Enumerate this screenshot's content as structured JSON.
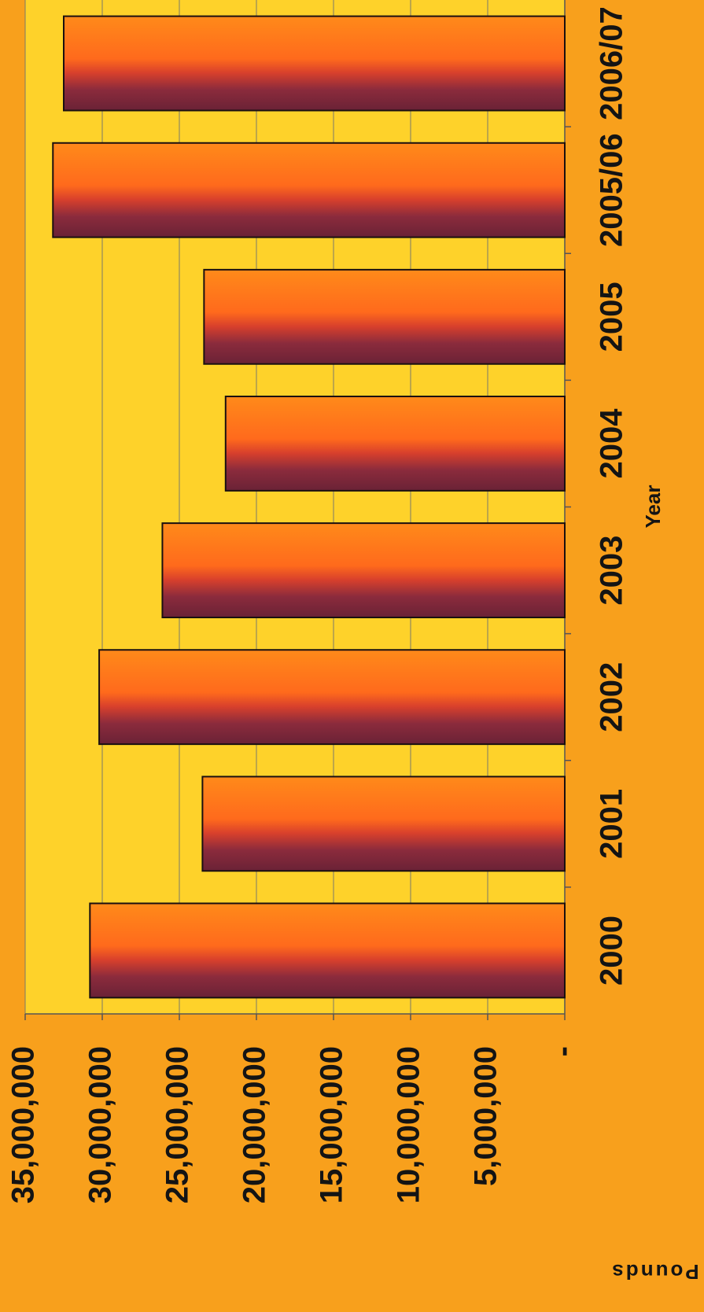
{
  "chart_data": {
    "type": "bar",
    "x_label": "Year",
    "y_label": "Pounds",
    "categories": [
      "2000",
      "2001",
      "2002",
      "2003",
      "2004",
      "2005",
      "2005/06",
      "2006/07"
    ],
    "values": [
      30800000,
      23500000,
      30200000,
      26100000,
      22000000,
      23400000,
      33200000,
      32500000
    ],
    "color": "#ff7a1a",
    "ylim": [
      0,
      35000000
    ],
    "yticks": [
      {
        "value": 0,
        "label": "-"
      },
      {
        "value": 5000000,
        "label": "5,000,000"
      },
      {
        "value": 10000000,
        "label": "10,000,000"
      },
      {
        "value": 15000000,
        "label": "15,000,000"
      },
      {
        "value": 20000000,
        "label": "20,000,000"
      },
      {
        "value": 25000000,
        "label": "25,000,000"
      },
      {
        "value": 30000000,
        "label": "30,000,000"
      },
      {
        "value": 35000000,
        "label": "35,000,000"
      }
    ],
    "grid": true
  }
}
